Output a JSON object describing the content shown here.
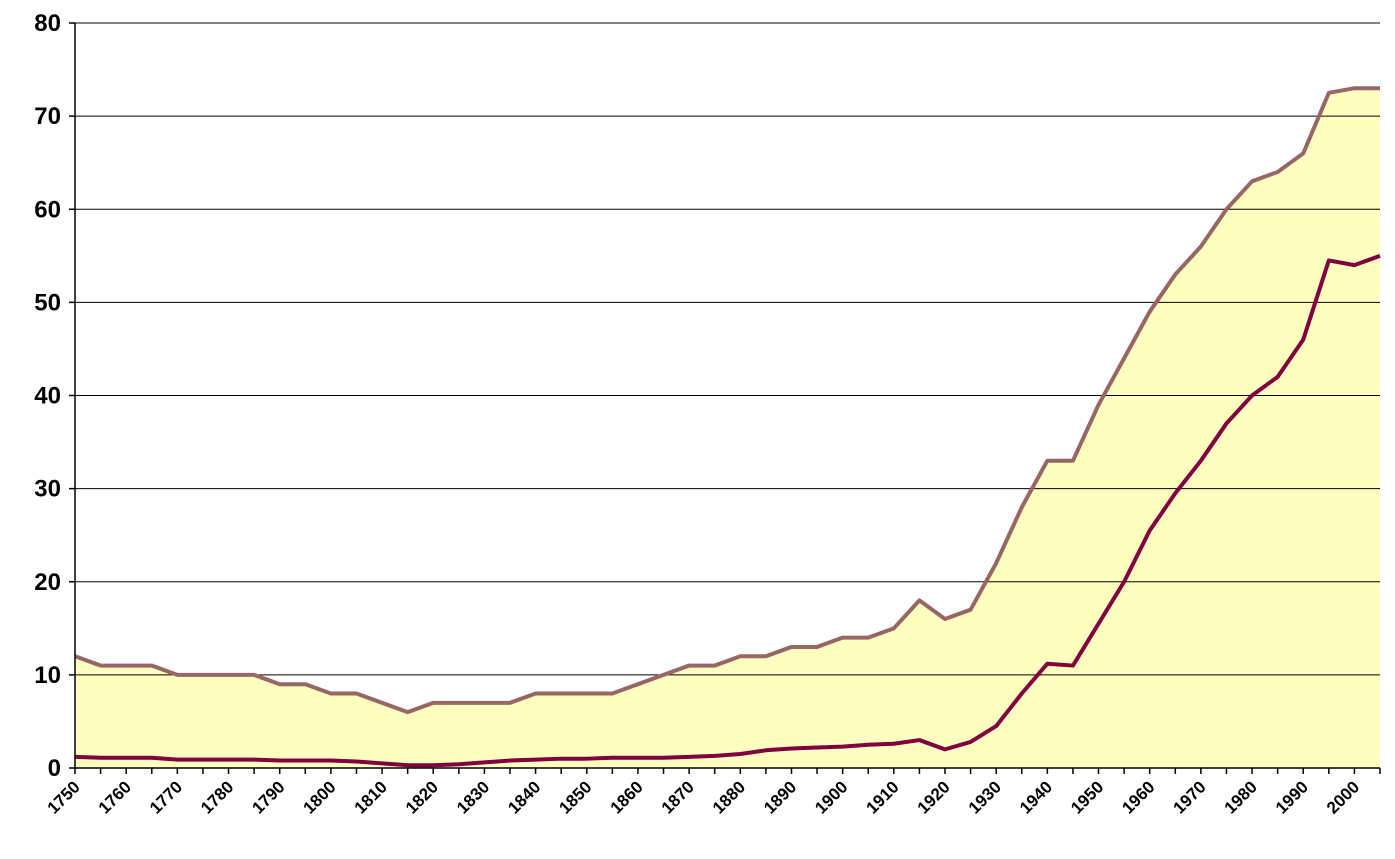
{
  "chart_data": {
    "type": "area",
    "title": "",
    "xlabel": "",
    "ylabel": "",
    "xlim": [
      1750,
      2005
    ],
    "ylim": [
      0,
      80
    ],
    "y_ticks": [
      0,
      10,
      20,
      30,
      40,
      50,
      60,
      70,
      80
    ],
    "x_ticks": [
      1750,
      1760,
      1770,
      1780,
      1790,
      1800,
      1810,
      1820,
      1830,
      1840,
      1850,
      1860,
      1870,
      1880,
      1890,
      1900,
      1910,
      1920,
      1930,
      1940,
      1950,
      1960,
      1970,
      1980,
      1990,
      2000
    ],
    "grid": true,
    "colors": {
      "area_fill": "#FFFFC0",
      "upper_line": "#996666",
      "lower_line": "#800040",
      "grid": "#000000"
    },
    "series": [
      {
        "x": [
          1750,
          1755,
          1760,
          1765,
          1770,
          1775,
          1780,
          1785,
          1790,
          1795,
          1800,
          1805,
          1810,
          1815,
          1820,
          1825,
          1830,
          1835,
          1840,
          1845,
          1850,
          1855,
          1860,
          1865,
          1870,
          1875,
          1880,
          1885,
          1890,
          1895,
          1900,
          1905,
          1910,
          1915,
          1920,
          1925,
          1930,
          1935,
          1940,
          1945,
          1950,
          1955,
          1960,
          1965,
          1970,
          1975,
          1980,
          1985,
          1990,
          1995,
          2000,
          2005
        ],
        "values": [
          12,
          11,
          11,
          11,
          10,
          10,
          10,
          10,
          9,
          9,
          8,
          8,
          7,
          6,
          7,
          7,
          7,
          7,
          8,
          8,
          8,
          8,
          9,
          10,
          11,
          11,
          12,
          12,
          13,
          13,
          14,
          14,
          15,
          18,
          16,
          17,
          22,
          28,
          33,
          33,
          39,
          44,
          49,
          53,
          56,
          60,
          63,
          64,
          66,
          72.5,
          73,
          73
        ]
      },
      {
        "x": [
          1750,
          1755,
          1760,
          1765,
          1770,
          1775,
          1780,
          1785,
          1790,
          1795,
          1800,
          1805,
          1810,
          1815,
          1820,
          1825,
          1830,
          1835,
          1840,
          1845,
          1850,
          1855,
          1860,
          1865,
          1870,
          1875,
          1880,
          1885,
          1890,
          1895,
          1900,
          1905,
          1910,
          1915,
          1920,
          1925,
          1930,
          1935,
          1940,
          1945,
          1950,
          1955,
          1960,
          1965,
          1970,
          1975,
          1980,
          1985,
          1990,
          1995,
          2000,
          2005
        ],
        "values": [
          1.2,
          1.1,
          1.1,
          1.1,
          0.9,
          0.9,
          0.9,
          0.9,
          0.8,
          0.8,
          0.8,
          0.7,
          0.5,
          0.3,
          0.3,
          0.4,
          0.6,
          0.8,
          0.9,
          1.0,
          1.0,
          1.1,
          1.1,
          1.1,
          1.2,
          1.3,
          1.5,
          1.9,
          2.1,
          2.2,
          2.3,
          2.5,
          2.6,
          3.0,
          2.0,
          2.8,
          4.5,
          8.0,
          11.2,
          11.0,
          15.5,
          20.0,
          25.5,
          29.5,
          33.0,
          37.0,
          40.0,
          42.0,
          46.0,
          54.5,
          54.0,
          55.0
        ]
      }
    ]
  }
}
